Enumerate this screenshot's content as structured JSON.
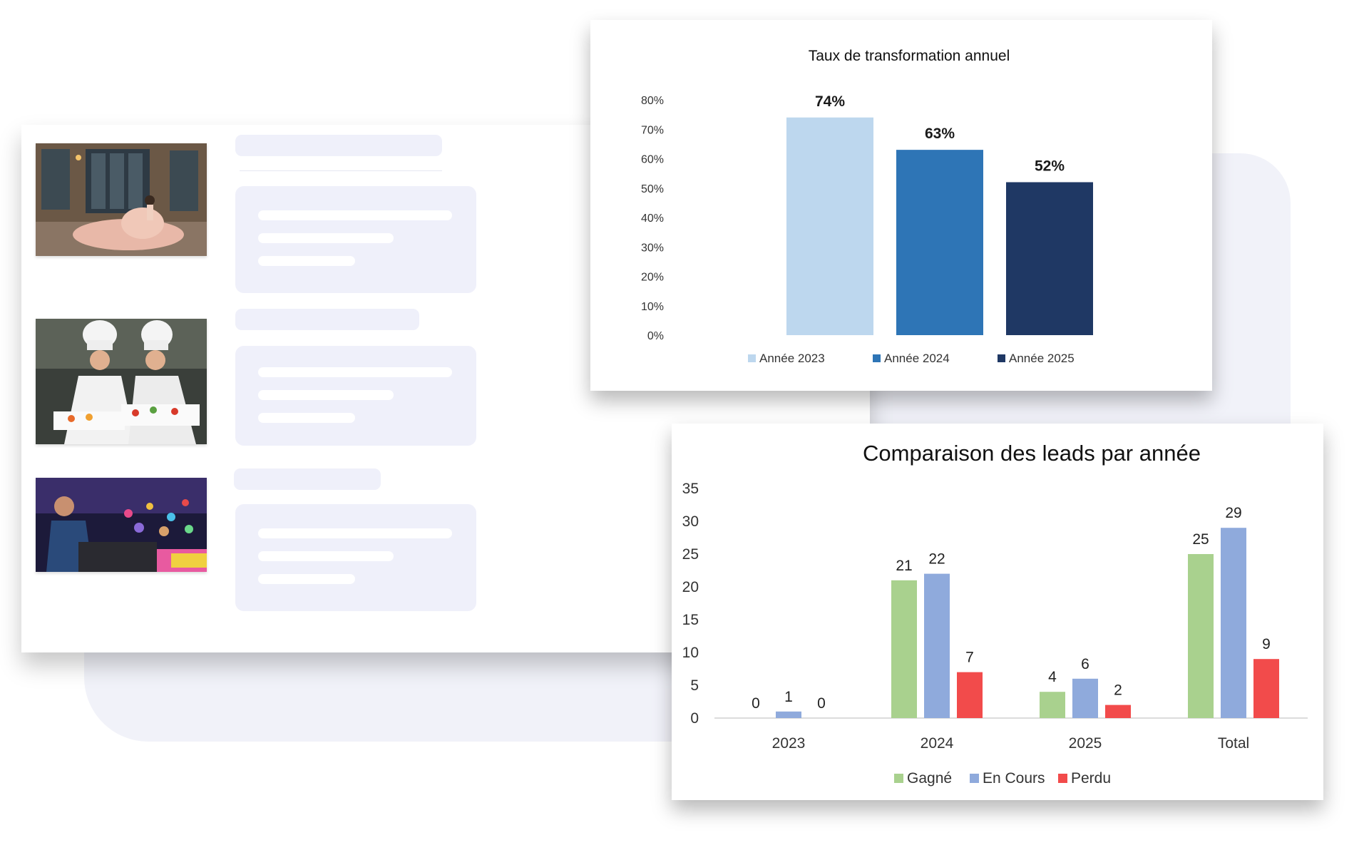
{
  "colors": {
    "y2023": "#bdd7ee",
    "y2024": "#2e75b6",
    "y2025": "#1f3864",
    "gagne": "#a9d18e",
    "en_cours": "#8faadc",
    "perdu": "#f24b4b",
    "skeleton": "#eff0fa"
  },
  "mockup": {
    "thumbnails": [
      {
        "icon": "wedding-photo-icon"
      },
      {
        "icon": "chefs-photo-icon"
      },
      {
        "icon": "dj-party-photo-icon"
      }
    ]
  },
  "chart_data": [
    {
      "type": "bar",
      "title": "Taux de transformation annuel",
      "categories": [
        "Année 2023",
        "Année 2024",
        "Année 2025"
      ],
      "values": [
        74,
        63,
        52
      ],
      "value_labels": [
        "74%",
        "63%",
        "52%"
      ],
      "ylim": [
        0,
        80
      ],
      "yticks": [
        "0%",
        "10%",
        "20%",
        "30%",
        "40%",
        "50%",
        "60%",
        "70%",
        "80%"
      ],
      "legend": [
        "Année 2023",
        "Année 2024",
        "Année 2025"
      ],
      "legend_position": "bottom",
      "grid": false
    },
    {
      "type": "bar",
      "title": "Comparaison des leads par année",
      "categories": [
        "2023",
        "2024",
        "2025",
        "Total"
      ],
      "series": [
        {
          "name": "Gagné",
          "values": [
            0,
            21,
            4,
            25
          ]
        },
        {
          "name": "En Cours",
          "values": [
            1,
            22,
            6,
            29
          ]
        },
        {
          "name": "Perdu",
          "values": [
            0,
            7,
            2,
            9
          ]
        }
      ],
      "ylim": [
        0,
        35
      ],
      "yticks": [
        "0",
        "5",
        "10",
        "15",
        "20",
        "25",
        "30",
        "35"
      ],
      "legend_position": "bottom",
      "grid": false
    }
  ]
}
